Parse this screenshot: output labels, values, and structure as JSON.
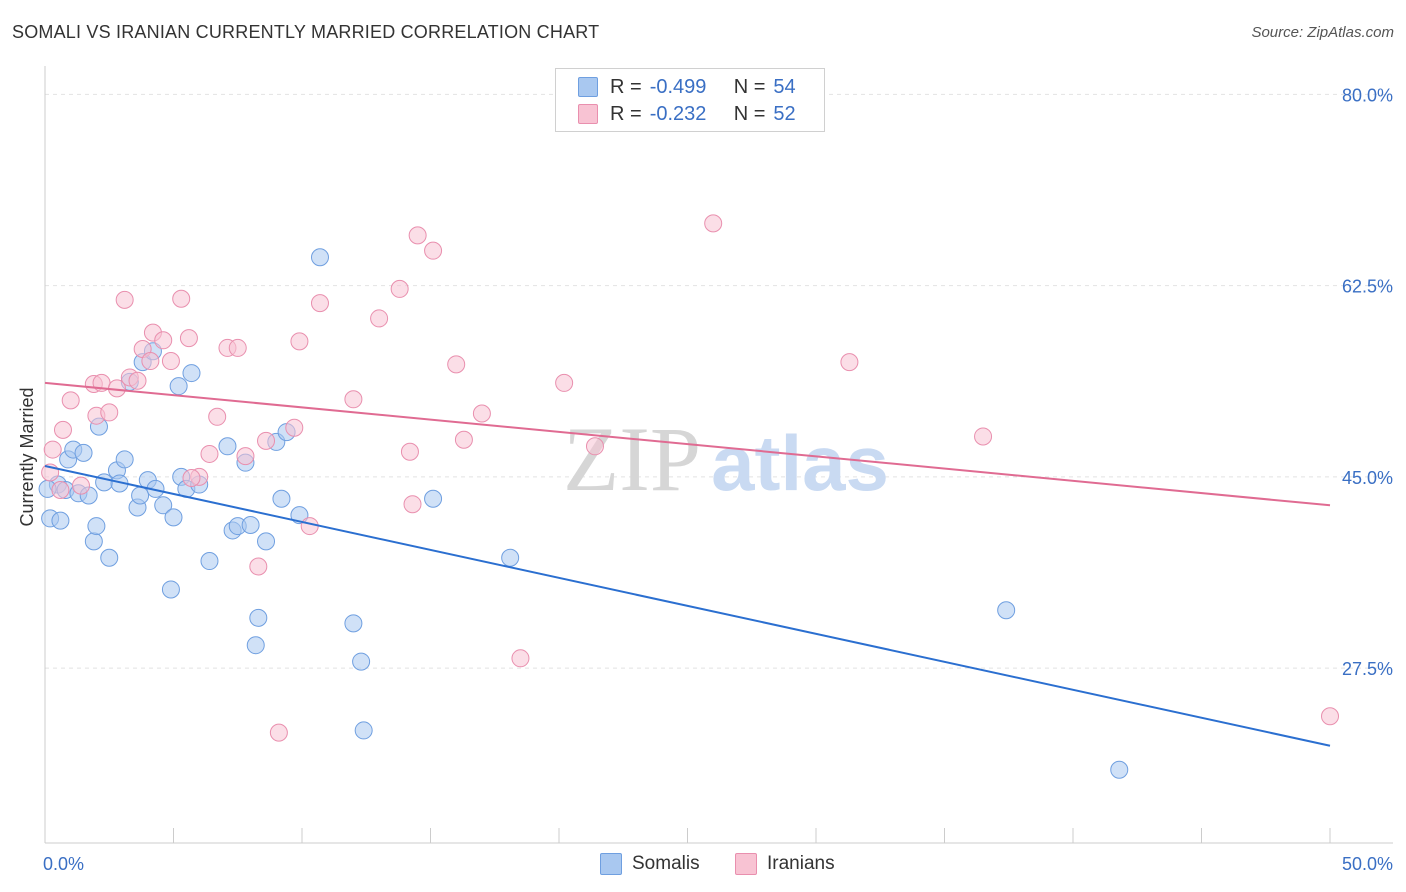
{
  "title": "SOMALI VS IRANIAN CURRENTLY MARRIED CORRELATION CHART",
  "source": "Source: ZipAtlas.com",
  "watermark": {
    "zip": "ZIP",
    "atlas": "atlas"
  },
  "legend_stats": [
    {
      "label_r": "R =",
      "r": "-0.499",
      "label_n": "N =",
      "n": "54",
      "color": "#a9c8f0",
      "border": "#6f9fe0"
    },
    {
      "label_r": "R =",
      "r": "-0.232",
      "label_n": "N =",
      "n": "52",
      "color": "#f8c3d3",
      "border": "#e98fae"
    }
  ],
  "bottom_legend": [
    {
      "name": "Somalis",
      "color": "#a9c8f0",
      "border": "#6f9fe0"
    },
    {
      "name": "Iranians",
      "color": "#f8c3d3",
      "border": "#e98fae"
    }
  ],
  "chart_data": {
    "type": "scatter",
    "xlabel": "",
    "ylabel": "Currently Married",
    "xlim": [
      0,
      50
    ],
    "ylim": [
      11.5,
      81.5
    ],
    "x_tick_labels": [
      {
        "value": 0,
        "label": "0.0%"
      },
      {
        "value": 50,
        "label": "50.0%"
      }
    ],
    "y_tick_labels": [
      {
        "value": 80,
        "label": "80.0%"
      },
      {
        "value": 62.5,
        "label": "62.5%"
      },
      {
        "value": 45,
        "label": "45.0%"
      },
      {
        "value": 27.5,
        "label": "27.5%"
      }
    ],
    "series": [
      {
        "name": "Somalis",
        "color": "#a9c8f0",
        "stroke": "#6f9fe0",
        "line_color": "#2b6fd0",
        "trend": [
          [
            0,
            46.0
          ],
          [
            50,
            20.4
          ]
        ],
        "points": [
          [
            0.2,
            41.2
          ],
          [
            0.6,
            41.0
          ],
          [
            0.5,
            44.3
          ],
          [
            0.8,
            43.8
          ],
          [
            0.9,
            46.6
          ],
          [
            1.1,
            47.5
          ],
          [
            1.3,
            43.5
          ],
          [
            1.5,
            47.2
          ],
          [
            1.7,
            43.3
          ],
          [
            1.9,
            39.1
          ],
          [
            2.0,
            40.5
          ],
          [
            2.1,
            49.6
          ],
          [
            2.3,
            44.5
          ],
          [
            2.5,
            37.6
          ],
          [
            2.8,
            45.6
          ],
          [
            2.9,
            44.4
          ],
          [
            3.1,
            46.6
          ],
          [
            3.3,
            53.7
          ],
          [
            3.6,
            42.2
          ],
          [
            3.7,
            43.3
          ],
          [
            3.8,
            55.5
          ],
          [
            4.0,
            44.7
          ],
          [
            4.2,
            56.5
          ],
          [
            4.3,
            43.9
          ],
          [
            4.6,
            42.4
          ],
          [
            4.9,
            34.7
          ],
          [
            5.0,
            41.3
          ],
          [
            5.2,
            53.3
          ],
          [
            5.3,
            45.0
          ],
          [
            5.5,
            43.9
          ],
          [
            5.7,
            54.5
          ],
          [
            6.0,
            44.3
          ],
          [
            6.4,
            37.3
          ],
          [
            7.1,
            47.8
          ],
          [
            7.3,
            40.1
          ],
          [
            7.5,
            40.5
          ],
          [
            7.8,
            46.3
          ],
          [
            8.0,
            40.6
          ],
          [
            8.3,
            32.1
          ],
          [
            8.2,
            29.6
          ],
          [
            8.6,
            39.1
          ],
          [
            9.0,
            48.2
          ],
          [
            9.2,
            43.0
          ],
          [
            9.4,
            49.1
          ],
          [
            9.9,
            41.5
          ],
          [
            10.7,
            65.1
          ],
          [
            12.0,
            31.6
          ],
          [
            12.3,
            28.1
          ],
          [
            12.4,
            21.8
          ],
          [
            15.1,
            43.0
          ],
          [
            18.1,
            37.6
          ],
          [
            37.4,
            32.8
          ],
          [
            41.8,
            18.2
          ],
          [
            0.1,
            43.9
          ]
        ]
      },
      {
        "name": "Iranians",
        "color": "#f8c3d3",
        "stroke": "#e98fae",
        "line_color": "#e06b92",
        "trend": [
          [
            0,
            53.6
          ],
          [
            50,
            42.4
          ]
        ],
        "points": [
          [
            0.3,
            47.5
          ],
          [
            0.7,
            49.3
          ],
          [
            1.0,
            52.0
          ],
          [
            1.4,
            44.2
          ],
          [
            1.9,
            53.5
          ],
          [
            2.0,
            50.6
          ],
          [
            2.2,
            53.6
          ],
          [
            2.5,
            50.9
          ],
          [
            2.8,
            53.1
          ],
          [
            3.1,
            61.2
          ],
          [
            3.3,
            54.1
          ],
          [
            3.6,
            53.8
          ],
          [
            3.8,
            56.7
          ],
          [
            4.1,
            55.6
          ],
          [
            4.2,
            58.2
          ],
          [
            4.6,
            57.5
          ],
          [
            4.9,
            55.6
          ],
          [
            5.3,
            61.3
          ],
          [
            5.6,
            57.7
          ],
          [
            6.0,
            45.0
          ],
          [
            6.4,
            47.1
          ],
          [
            6.7,
            50.5
          ],
          [
            7.1,
            56.8
          ],
          [
            7.5,
            56.8
          ],
          [
            7.8,
            46.9
          ],
          [
            8.3,
            36.8
          ],
          [
            8.6,
            48.3
          ],
          [
            9.1,
            21.6
          ],
          [
            9.7,
            49.5
          ],
          [
            9.9,
            57.4
          ],
          [
            10.3,
            40.5
          ],
          [
            10.7,
            60.9
          ],
          [
            12.0,
            52.1
          ],
          [
            13.0,
            59.5
          ],
          [
            13.8,
            62.2
          ],
          [
            14.2,
            47.3
          ],
          [
            14.3,
            42.5
          ],
          [
            14.5,
            67.1
          ],
          [
            15.1,
            65.7
          ],
          [
            16.0,
            55.3
          ],
          [
            16.3,
            48.4
          ],
          [
            17.0,
            50.8
          ],
          [
            18.5,
            28.4
          ],
          [
            20.2,
            53.6
          ],
          [
            21.4,
            47.8
          ],
          [
            26.0,
            68.2
          ],
          [
            31.3,
            55.5
          ],
          [
            36.5,
            48.7
          ],
          [
            50.0,
            23.1
          ],
          [
            0.2,
            45.4
          ],
          [
            5.7,
            44.9
          ],
          [
            0.6,
            43.8
          ]
        ]
      }
    ]
  }
}
